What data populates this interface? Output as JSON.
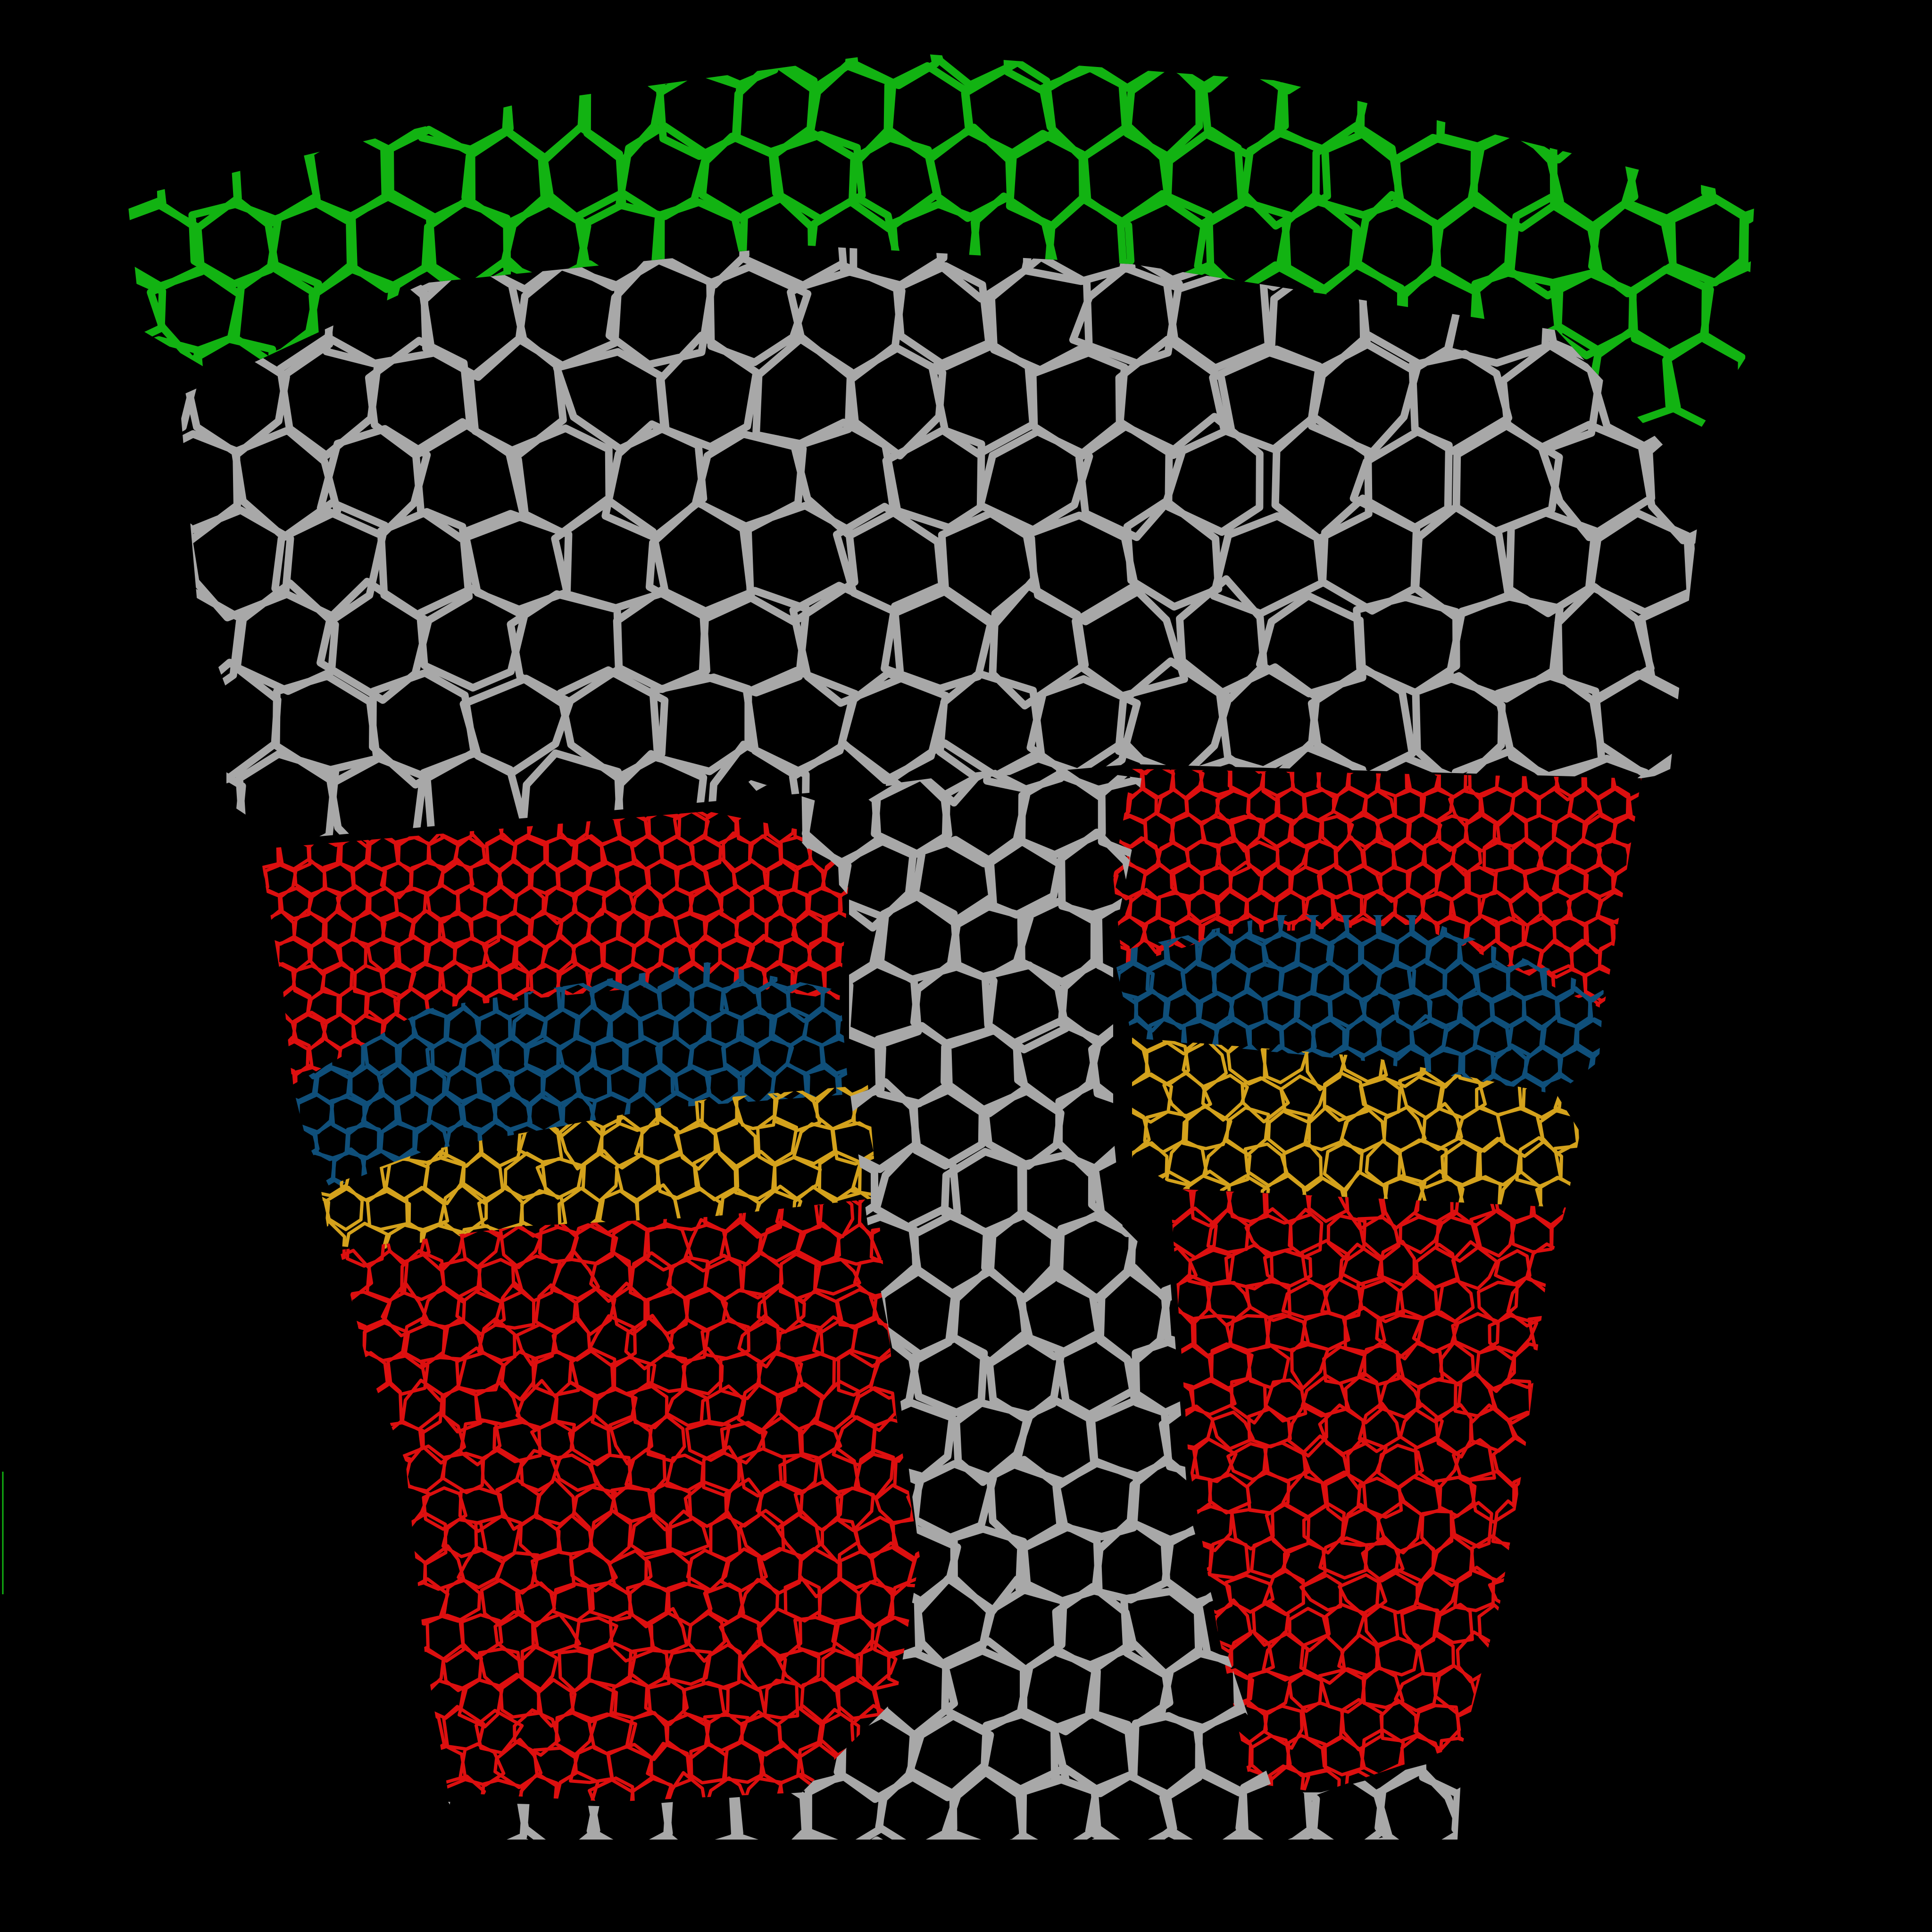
{
  "image": {
    "kind": "segmented cell-outline micrograph",
    "background": "#000000"
  },
  "tissue_layers": [
    {
      "name": "epidermis",
      "color": "#12b312"
    },
    {
      "name": "cortex-and-central-column",
      "color": "#a8a8a8"
    },
    {
      "name": "outer-meristem-band",
      "color": "#dd0f0f"
    },
    {
      "name": "blue-cell-band",
      "color": "#0f4f7a"
    },
    {
      "name": "yellow-boundary-band",
      "color": "#d4a21c"
    },
    {
      "name": "inner-meristem-region",
      "color": "#dd0f0f"
    }
  ],
  "stray_mark": {
    "color": "#12b312"
  }
}
